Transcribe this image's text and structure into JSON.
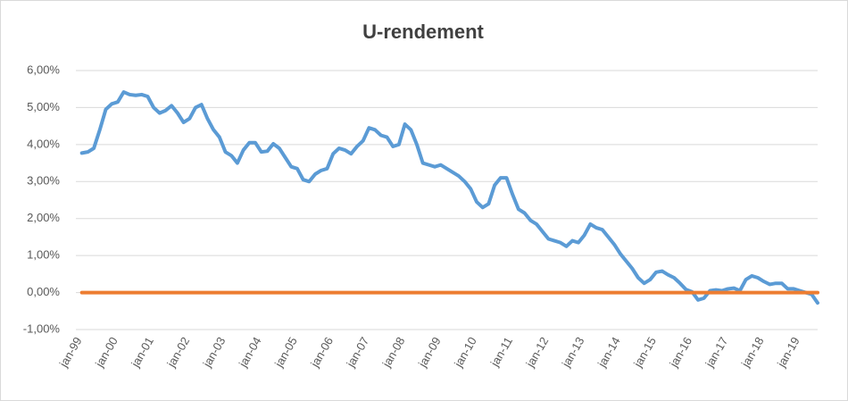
{
  "chart_data": {
    "type": "line",
    "title": "U-rendement",
    "categories": [
      "jan-99",
      null,
      null,
      null,
      null,
      null,
      "jan-00",
      null,
      null,
      null,
      null,
      null,
      "jan-01",
      null,
      null,
      null,
      null,
      null,
      "jan-02",
      null,
      null,
      null,
      null,
      null,
      "jan-03",
      null,
      null,
      null,
      null,
      null,
      "jan-04",
      null,
      null,
      null,
      null,
      null,
      "jan-05",
      null,
      null,
      null,
      null,
      null,
      "jan-06",
      null,
      null,
      null,
      null,
      null,
      "jan-07",
      null,
      null,
      null,
      null,
      null,
      "jan-08",
      null,
      null,
      null,
      null,
      null,
      "jan-09",
      null,
      null,
      null,
      null,
      null,
      "jan-10",
      null,
      null,
      null,
      null,
      null,
      "jan-11",
      null,
      null,
      null,
      null,
      null,
      "jan-12",
      null,
      null,
      null,
      null,
      null,
      "jan-13",
      null,
      null,
      null,
      null,
      null,
      "jan-14",
      null,
      null,
      null,
      null,
      null,
      "jan-15",
      null,
      null,
      null,
      null,
      null,
      "jan-16",
      null,
      null,
      null,
      null,
      null,
      "jan-17",
      null,
      null,
      null,
      null,
      null,
      "jan-18",
      null,
      null,
      null,
      null,
      null,
      "jan-19",
      null,
      null,
      null,
      null
    ],
    "series": [
      {
        "color": "#5b9bd5",
        "values": [
          null,
          3.77,
          3.8,
          3.9,
          4.4,
          4.95,
          5.1,
          5.15,
          5.42,
          5.35,
          5.33,
          5.35,
          5.3,
          5.0,
          4.85,
          4.92,
          5.05,
          4.85,
          4.6,
          4.7,
          5.0,
          5.08,
          4.7,
          4.4,
          4.2,
          3.8,
          3.7,
          3.5,
          3.85,
          4.05,
          4.05,
          3.8,
          3.82,
          4.02,
          3.9,
          3.65,
          3.4,
          3.35,
          3.05,
          3.0,
          3.2,
          3.3,
          3.35,
          3.75,
          3.9,
          3.85,
          3.75,
          3.95,
          4.1,
          4.45,
          4.4,
          4.25,
          4.2,
          3.95,
          4.0,
          4.55,
          4.4,
          4.0,
          3.5,
          3.45,
          3.4,
          3.45,
          3.35,
          3.25,
          3.15,
          3.0,
          2.8,
          2.45,
          2.3,
          2.4,
          2.9,
          3.1,
          3.1,
          2.65,
          2.25,
          2.15,
          1.95,
          1.85,
          1.65,
          1.45,
          1.4,
          1.35,
          1.25,
          1.4,
          1.35,
          1.55,
          1.85,
          1.75,
          1.7,
          1.5,
          1.3,
          1.05,
          0.85,
          0.65,
          0.4,
          0.25,
          0.35,
          0.55,
          0.58,
          0.48,
          0.4,
          0.25,
          0.08,
          0.02,
          -0.2,
          -0.15,
          0.05,
          0.07,
          0.05,
          0.1,
          0.12,
          0.05,
          0.35,
          0.45,
          0.4,
          0.3,
          0.22,
          0.25,
          0.25,
          0.1,
          0.1,
          0.05,
          0.0,
          -0.05,
          -0.28
        ]
      },
      {
        "color": "#ed7d31",
        "values": [
          null,
          0,
          0,
          0,
          0,
          0,
          0,
          0,
          0,
          0,
          0,
          0,
          0,
          0,
          0,
          0,
          0,
          0,
          0,
          0,
          0,
          0,
          0,
          0,
          0,
          0,
          0,
          0,
          0,
          0,
          0,
          0,
          0,
          0,
          0,
          0,
          0,
          0,
          0,
          0,
          0,
          0,
          0,
          0,
          0,
          0,
          0,
          0,
          0,
          0,
          0,
          0,
          0,
          0,
          0,
          0,
          0,
          0,
          0,
          0,
          0,
          0,
          0,
          0,
          0,
          0,
          0,
          0,
          0,
          0,
          0,
          0,
          0,
          0,
          0,
          0,
          0,
          0,
          0,
          0,
          0,
          0,
          0,
          0,
          0,
          0,
          0,
          0,
          0,
          0,
          0,
          0,
          0,
          0,
          0,
          0,
          0,
          0,
          0,
          0,
          0,
          0,
          0,
          0,
          0,
          0,
          0,
          0,
          0,
          0,
          0,
          0,
          0,
          0,
          0,
          0,
          0,
          0,
          0,
          0,
          0,
          0,
          0,
          0,
          0
        ]
      }
    ],
    "ylim": [
      -1,
      6
    ],
    "yticks": [
      {
        "value": -1,
        "label": "-1,00%"
      },
      {
        "value": 0,
        "label": "0,00%"
      },
      {
        "value": 1,
        "label": "1,00%"
      },
      {
        "value": 2,
        "label": "2,00%"
      },
      {
        "value": 3,
        "label": "3,00%"
      },
      {
        "value": 4,
        "label": "4,00%"
      },
      {
        "value": 5,
        "label": "5,00%"
      },
      {
        "value": 6,
        "label": "6,00%"
      }
    ],
    "grid": true
  }
}
